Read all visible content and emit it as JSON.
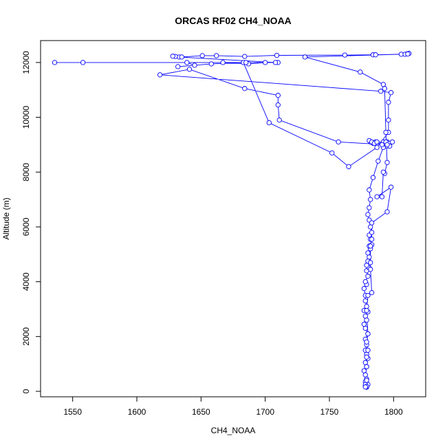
{
  "chart_data": {
    "type": "scatter",
    "title": "ORCAS RF02 CH4_NOAA",
    "xlabel": "CH4_NOAA",
    "ylabel": "Altitude (m)",
    "xlim": [
      1525,
      1825
    ],
    "ylim": [
      -200,
      12800
    ],
    "xticks": [
      1550,
      1600,
      1650,
      1700,
      1750,
      1800
    ],
    "yticks": [
      0,
      2000,
      4000,
      6000,
      8000,
      10000,
      12000
    ],
    "grid": false,
    "legend": "none",
    "series": [
      {
        "name": "",
        "color": "#0000ff",
        "marker": "open-circle",
        "line": true,
        "points": [
          [
            1779,
            150
          ],
          [
            1778,
            200
          ],
          [
            1780,
            250
          ],
          [
            1778,
            350
          ],
          [
            1779,
            450
          ],
          [
            1777,
            750
          ],
          [
            1779,
            900
          ],
          [
            1778,
            1050
          ],
          [
            1780,
            1200
          ],
          [
            1779,
            1350
          ],
          [
            1778,
            1500
          ],
          [
            1779,
            1700
          ],
          [
            1778,
            1900
          ],
          [
            1780,
            2100
          ],
          [
            1778,
            2300
          ],
          [
            1777,
            2450
          ],
          [
            1779,
            2600
          ],
          [
            1778,
            2750
          ],
          [
            1780,
            2900
          ],
          [
            1777,
            2950
          ],
          [
            1779,
            3100
          ],
          [
            1778,
            3300
          ],
          [
            1778,
            3500
          ],
          [
            1777,
            3750
          ],
          [
            1779,
            3900
          ],
          [
            1778,
            4000
          ],
          [
            1780,
            4200
          ],
          [
            1779,
            4400
          ],
          [
            1781,
            4500
          ],
          [
            1779,
            4600
          ],
          [
            1780,
            4750
          ],
          [
            1781,
            4900
          ],
          [
            1780,
            5050
          ],
          [
            1782,
            5200
          ],
          [
            1781,
            5300
          ],
          [
            1783,
            5350
          ],
          [
            1782,
            5550
          ],
          [
            1781,
            5700
          ],
          [
            1783,
            5800
          ],
          [
            1782,
            6000
          ],
          [
            1781,
            6250
          ],
          [
            1780,
            6450
          ],
          [
            1781,
            6700
          ],
          [
            1782,
            7000
          ],
          [
            1781,
            7350
          ],
          [
            1784,
            7800
          ],
          [
            1788,
            8400
          ],
          [
            1792,
            8900
          ],
          [
            1795,
            9100
          ],
          [
            1797,
            9050
          ],
          [
            1795,
            8950
          ],
          [
            1793,
            9050
          ],
          [
            1792,
            9100
          ],
          [
            1786,
            9100
          ],
          [
            1784,
            9050
          ],
          [
            1782,
            9100
          ],
          [
            1781,
            9150
          ],
          [
            1783,
            9100
          ],
          [
            1785,
            9050
          ],
          [
            1787,
            9100
          ],
          [
            1791,
            9000
          ],
          [
            1794,
            9100
          ],
          [
            1799,
            9100
          ],
          [
            1797,
            8950
          ],
          [
            1795,
            9000
          ],
          [
            1757,
            9100
          ],
          [
            1711,
            9900
          ],
          [
            1710,
            10450
          ],
          [
            1710,
            10800
          ],
          [
            1684,
            11050
          ],
          [
            1641,
            11750
          ],
          [
            1618,
            11550
          ],
          [
            1790,
            10950
          ],
          [
            1798,
            10900
          ],
          [
            1796,
            10550
          ],
          [
            1796,
            9900
          ],
          [
            1796,
            9450
          ],
          [
            1787,
            8900
          ],
          [
            1765,
            8200
          ],
          [
            1752,
            8700
          ],
          [
            1703,
            9800
          ],
          [
            1683,
            12000
          ],
          [
            1658,
            11950
          ],
          [
            1632,
            11850
          ],
          [
            1645,
            11900
          ],
          [
            1639,
            12000
          ],
          [
            1667,
            12000
          ],
          [
            1687,
            11950
          ],
          [
            1700,
            12000
          ],
          [
            1710,
            12000
          ],
          [
            1558,
            12000
          ],
          [
            1536,
            12000
          ],
          [
            1685,
            12000
          ],
          [
            1708,
            12000
          ],
          [
            1633,
            12200
          ],
          [
            1630,
            12220
          ],
          [
            1628,
            12230
          ],
          [
            1635,
            12200
          ],
          [
            1651,
            12250
          ],
          [
            1662,
            12250
          ],
          [
            1684,
            12220
          ],
          [
            1709,
            12260
          ],
          [
            1762,
            12270
          ],
          [
            1784,
            12280
          ],
          [
            1786,
            12280
          ],
          [
            1806,
            12300
          ],
          [
            1809,
            12300
          ],
          [
            1811,
            12320
          ],
          [
            1812,
            12330
          ],
          [
            1811,
            12310
          ],
          [
            1731,
            12200
          ],
          [
            1774,
            11650
          ],
          [
            1792,
            11200
          ],
          [
            1793,
            11050
          ],
          [
            1794,
            9450
          ],
          [
            1795,
            8350
          ],
          [
            1793,
            7950
          ],
          [
            1792,
            8000
          ],
          [
            1791,
            7100
          ],
          [
            1787,
            7100
          ],
          [
            1798,
            7450
          ],
          [
            1795,
            6550
          ],
          [
            1783,
            6150
          ],
          [
            1783,
            5550
          ],
          [
            1782,
            5300
          ],
          [
            1782,
            4700
          ],
          [
            1782,
            4450
          ],
          [
            1783,
            3600
          ],
          [
            1780,
            3500
          ],
          [
            1779,
            2950
          ],
          [
            1780,
            2100
          ],
          [
            1779,
            1800
          ],
          [
            1780,
            1500
          ],
          [
            1779,
            1250
          ],
          [
            1779,
            900
          ],
          [
            1778,
            600
          ],
          [
            1779,
            400
          ],
          [
            1778,
            250
          ],
          [
            1779,
            180
          ],
          [
            1778,
            160
          ]
        ]
      }
    ]
  }
}
